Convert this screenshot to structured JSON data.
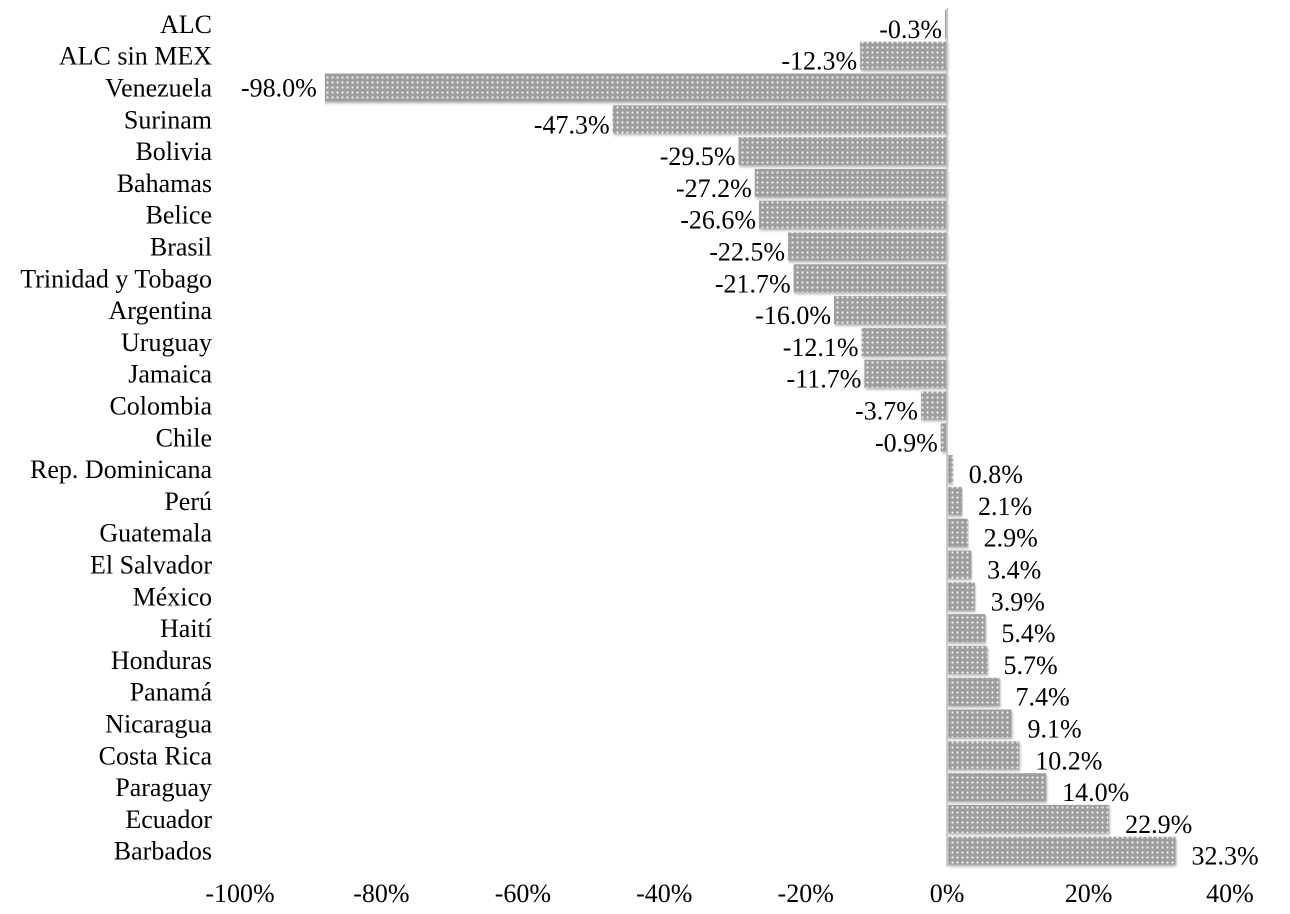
{
  "chart_data": {
    "type": "bar",
    "orientation": "horizontal",
    "categories": [
      "ALC",
      "ALC sin MEX",
      "Venezuela",
      "Surinam",
      "Bolivia",
      "Bahamas",
      "Belice",
      "Brasil",
      "Trinidad y Tobago",
      "Argentina",
      "Uruguay",
      "Jamaica",
      "Colombia",
      "Chile",
      "Rep. Dominicana",
      "Perú",
      "Guatemala",
      "El Salvador",
      "México",
      "Haití",
      "Honduras",
      "Panamá",
      "Nicaragua",
      "Costa Rica",
      "Paraguay",
      "Ecuador",
      "Barbados"
    ],
    "values": [
      -0.3,
      -12.3,
      -98.0,
      -47.3,
      -29.5,
      -27.2,
      -26.6,
      -22.5,
      -21.7,
      -16.0,
      -12.1,
      -11.7,
      -3.7,
      -0.9,
      0.8,
      2.1,
      2.9,
      3.4,
      3.9,
      5.4,
      5.7,
      7.4,
      9.1,
      10.2,
      14.0,
      22.9,
      32.3
    ],
    "value_labels": [
      "-0.3%",
      "-12.3%",
      "-98.0%",
      "-47.3%",
      "-29.5%",
      "-27.2%",
      "-26.6%",
      "-22.5%",
      "-21.7%",
      "-16.0%",
      "-12.1%",
      "-11.7%",
      "-3.7%",
      "-0.9%",
      "0.8%",
      "2.1%",
      "2.9%",
      "3.4%",
      "3.9%",
      "5.4%",
      "5.7%",
      "7.4%",
      "9.1%",
      "10.2%",
      "14.0%",
      "22.9%",
      "32.3%"
    ],
    "xlim": [
      -100,
      40
    ],
    "xticks": [
      -100,
      -80,
      -60,
      -40,
      -20,
      0,
      20,
      40
    ],
    "xtick_labels": [
      "-100%",
      "-80%",
      "-60%",
      "-40%",
      "-20%",
      "0%",
      "20%",
      "40%"
    ],
    "title": "",
    "xlabel": "",
    "ylabel": "",
    "grid": false,
    "bar_color": "#a6a6a6",
    "bar_pattern": "dotted"
  }
}
